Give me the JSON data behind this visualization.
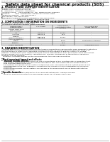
{
  "bg_color": "#ffffff",
  "header_left": "Product Name: Lithium Ion Battery Cell",
  "header_right_line1": "Substance Control: TLOH16TPF-030616",
  "header_right_line2": "Established / Revision: Dec.7,2016",
  "title": "Safety data sheet for chemical products (SDS)",
  "section1_title": "1. PRODUCT AND COMPANY IDENTIFICATION",
  "section1_items": [
    "・Product name: Lithium Ion Battery Cell",
    "・Product code: Cylindrical type cell",
    "     INR18650U, INR18650L, INR18650A",
    "・Company name:    Sanyo Energy Co., Ltd.  Mobile Energy Company",
    "・Address:          2001  Kamitoyama, Sumoto City, Hyogo, Japan",
    "・Telephone number:   +81-799-26-4111",
    "・Fax number: +81-799-26-4121",
    "・Emergency telephone number (Weekdays) +81-799-26-2662",
    "                              (Night and holiday) +81-799-26-2121"
  ],
  "section2_title": "2. COMPOSITION / INFORMATION ON INGREDIENTS",
  "section2_sub": "・Substance or preparation: Preparation",
  "section2_table_header": "・Information about the chemical nature of product",
  "table_col1": "Common name /\nChemical name",
  "table_col2": "CAS number",
  "table_col3": "Concentration /\nConcentration range\n(50-65%)",
  "table_col4": "Classification and\nhazard labeling",
  "table_rows": [
    [
      "Lithium cobalt oxide\n(LiMn,Co,Mo)O4",
      "-",
      "",
      ""
    ],
    [
      "Iron",
      "7439-89-6",
      "10-20%",
      "-"
    ],
    [
      "Aluminum",
      "7429-90-5",
      "2-5%",
      "-"
    ],
    [
      "Graphite\n(Made of graphite-1\n(ATMs of graphite))",
      "7782-42-5\n7782-42-5",
      "10-20%",
      "-"
    ],
    [
      "Copper",
      "",
      "5-10%",
      "Sensitization of the skin"
    ],
    [
      "Separator",
      "",
      "1-5%",
      ""
    ],
    [
      "Organic electrolyte",
      "-",
      "10-20%",
      "Inflammable liquid"
    ]
  ],
  "section3_title": "3. HAZARDS IDENTIFICATION",
  "section3_para": "   For this battery cell, chemical materials are stored in a hermetically sealed metal case, designed to withstand\ntemperatures and pressures encountered during normal use. As a result, during normal use, there is no\nphysical danger of explosion or aspiration and there is a little danger of battery electrolyte leakage.\nHowever, if exposed to a fire, added mechanical shocks, disassembled, when electrolyte comes into contact,\nthe gas release control (to operate). The battery cell case will be breached of the particles, hazardous\nmaterials may be released.\n   Moreover, if heated strongly by the surrounding fire, toxic gas may be emitted.",
  "bullet1": "・Most important hazard and effects:",
  "human_health": "  Human health effects:",
  "human_lines": [
    "    Inhalation: The release of the electrolyte has an anaesthesia action and stimulates a respiratory tract.",
    "    Skin contact: The release of the electrolyte stimulates a skin. The electrolyte skin contact causes a",
    "    sore and stimulation of the skin.",
    "    Eye contact: The release of the electrolyte stimulates eyes. The electrolyte eye contact causes a sore",
    "    and stimulation of the eye. Especially, a substance that causes a strong inflammation of the eyes is",
    "    contained.",
    "    Environmental effects: Since a battery cell remains in the environment, do not throw out it into the",
    "    environment."
  ],
  "specific_hazards": "・Specific hazards:",
  "specific_lines": [
    "    If the electrolyte contacts with water, it will generate detrimental hydrogen fluoride.",
    "    Since the hazardous electrolyte is inflammable liquid, do not bring close to fire."
  ],
  "font_tiny": 1.7,
  "font_small": 2.0,
  "font_section": 2.4,
  "font_title": 3.8
}
